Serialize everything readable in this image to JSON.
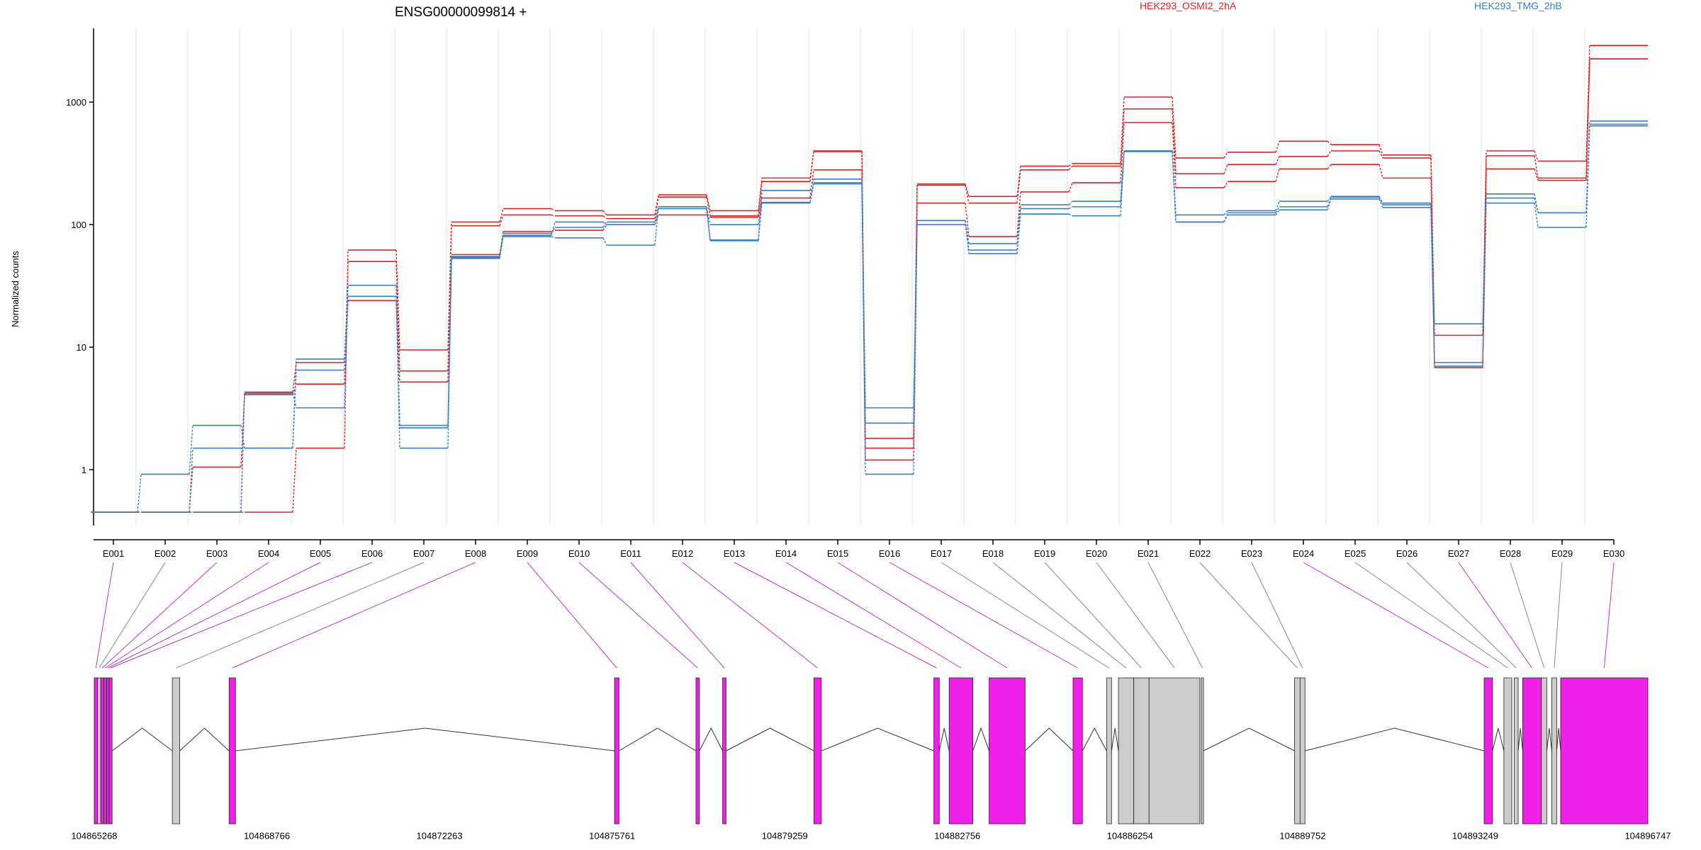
{
  "colors": {
    "osmi": "#d62728",
    "tmg": "#3a7fbf",
    "exon_sig": "#f020e8",
    "exon_ns": "#cccccc",
    "connector_sig": "#b040b8",
    "connector_ns": "#888888",
    "grid": "#e3e3ea"
  },
  "chart_data": {
    "type": "line",
    "title": "ENSG00000099814 +",
    "ylabel": "Normalized counts",
    "yscale": "log",
    "ylim": [
      0.35,
      4000
    ],
    "yticks": [
      {
        "value": 1,
        "label": "1"
      },
      {
        "value": 10,
        "label": "10"
      },
      {
        "value": 100,
        "label": "100"
      },
      {
        "value": 1000,
        "label": "1000"
      }
    ],
    "grid": true,
    "legend_position": "top",
    "categories": [
      "E001",
      "E002",
      "E003",
      "E004",
      "E005",
      "E006",
      "E007",
      "E008",
      "E009",
      "E010",
      "E011",
      "E012",
      "E013",
      "E014",
      "E015",
      "E016",
      "E017",
      "E018",
      "E019",
      "E020",
      "E021",
      "E022",
      "E023",
      "E024",
      "E025",
      "E026",
      "E027",
      "E028",
      "E029",
      "E030"
    ],
    "series": [
      {
        "name": "HEK293_OSMI2_2hA",
        "group": "osmi",
        "values": [
          0.45,
          0.45,
          0.45,
          0.45,
          1.5,
          62,
          9.5,
          105,
          135,
          130,
          120,
          175,
          130,
          240,
          400,
          1.8,
          215,
          170,
          300,
          315,
          1100,
          350,
          390,
          480,
          450,
          370,
          12.5,
          400,
          330,
          2900
        ]
      },
      {
        "name": "",
        "group": "osmi",
        "values": [
          0.45,
          0.45,
          1.05,
          4.1,
          5.0,
          50,
          6.4,
          98,
          120,
          118,
          112,
          168,
          118,
          225,
          395,
          1.5,
          210,
          150,
          280,
          300,
          880,
          260,
          310,
          360,
          400,
          350,
          7.5,
          365,
          240,
          2250
        ]
      },
      {
        "name": "",
        "group": "osmi",
        "values": [
          0.45,
          0.45,
          0.45,
          4.3,
          7.5,
          24,
          5.2,
          57,
          88,
          90,
          100,
          120,
          115,
          165,
          280,
          1.2,
          150,
          80,
          185,
          220,
          680,
          200,
          225,
          285,
          310,
          240,
          6.8,
          285,
          230,
          2250
        ]
      },
      {
        "name": "HEK293_TMG_2hB",
        "group": "tmg",
        "values": [
          0.45,
          0.92,
          2.3,
          1.5,
          8.0,
          32,
          2.3,
          53,
          85,
          95,
          105,
          135,
          75,
          150,
          220,
          3.2,
          108,
          70,
          145,
          155,
          400,
          120,
          130,
          155,
          170,
          150,
          15.5,
          178,
          125,
          700
        ]
      },
      {
        "name": "",
        "group": "tmg",
        "values": [
          0.45,
          0.45,
          1.5,
          1.5,
          6.5,
          32,
          2.2,
          55,
          82,
          105,
          100,
          140,
          74,
          190,
          235,
          0.92,
          100,
          62,
          135,
          140,
          400,
          105,
          125,
          140,
          168,
          145,
          7.5,
          165,
          125,
          660
        ]
      },
      {
        "name": "",
        "group": "tmg",
        "values": [
          0.45,
          0.45,
          0.45,
          4.2,
          3.2,
          26,
          1.5,
          54,
          80,
          78,
          68,
          140,
          100,
          152,
          215,
          2.4,
          108,
          58,
          122,
          118,
          395,
          105,
          120,
          132,
          162,
          138,
          7.0,
          150,
          95,
          640
        ]
      }
    ],
    "genomic_ticks": [
      "104865268",
      "104868766",
      "104872263",
      "104875761",
      "104879259",
      "104882756",
      "104886254",
      "104889752",
      "104893249",
      "104896747"
    ],
    "genomic_range": [
      104865268,
      104896747
    ],
    "exons": [
      {
        "id": "E001",
        "start": 104865268,
        "end": 104865335,
        "significant": true
      },
      {
        "id": "E002",
        "start": 104865335,
        "end": 104865400,
        "significant": false
      },
      {
        "id": "E003",
        "start": 104865400,
        "end": 104865460,
        "significant": true
      },
      {
        "id": "E004",
        "start": 104865460,
        "end": 104865520,
        "significant": true
      },
      {
        "id": "E005",
        "start": 104865520,
        "end": 104865570,
        "significant": true
      },
      {
        "id": "E006",
        "start": 104865570,
        "end": 104865630,
        "significant": true
      },
      {
        "id": "E007",
        "start": 104866850,
        "end": 104867000,
        "significant": false
      },
      {
        "id": "E008",
        "start": 104868000,
        "end": 104868130,
        "significant": true
      },
      {
        "id": "E009",
        "start": 104875810,
        "end": 104875900,
        "significant": true
      },
      {
        "id": "E010",
        "start": 104877460,
        "end": 104877530,
        "significant": true
      },
      {
        "id": "E011",
        "start": 104878000,
        "end": 104878070,
        "significant": true
      },
      {
        "id": "E012",
        "start": 104879850,
        "end": 104880000,
        "significant": true
      },
      {
        "id": "E013",
        "start": 104882280,
        "end": 104882390,
        "significant": true
      },
      {
        "id": "E014",
        "start": 104882590,
        "end": 104883070,
        "significant": true
      },
      {
        "id": "E015",
        "start": 104883400,
        "end": 104884130,
        "significant": true
      },
      {
        "id": "E016",
        "start": 104885100,
        "end": 104885290,
        "significant": true
      },
      {
        "id": "E017",
        "start": 104885780,
        "end": 104885880,
        "significant": false
      },
      {
        "id": "E018",
        "start": 104886020,
        "end": 104886330,
        "significant": false
      },
      {
        "id": "E019",
        "start": 104886330,
        "end": 104886640,
        "significant": false
      },
      {
        "id": "E020",
        "start": 104886640,
        "end": 104887670,
        "significant": false
      },
      {
        "id": "E021",
        "start": 104887700,
        "end": 104887700,
        "significant": false
      },
      {
        "id": "E022",
        "start": 104889590,
        "end": 104889700,
        "significant": false
      },
      {
        "id": "E023",
        "start": 104889700,
        "end": 104889800,
        "significant": false
      },
      {
        "id": "E024",
        "start": 104893430,
        "end": 104893600,
        "significant": true
      },
      {
        "id": "E025",
        "start": 104893830,
        "end": 104893990,
        "significant": false
      },
      {
        "id": "E026",
        "start": 104894040,
        "end": 104894120,
        "significant": false
      },
      {
        "id": "E027",
        "start": 104894210,
        "end": 104894590,
        "significant": true
      },
      {
        "id": "E028",
        "start": 104894590,
        "end": 104894700,
        "significant": false
      },
      {
        "id": "E029",
        "start": 104894800,
        "end": 104894900,
        "significant": false
      },
      {
        "id": "E030",
        "start": 104894980,
        "end": 104896747,
        "significant": true
      }
    ]
  }
}
